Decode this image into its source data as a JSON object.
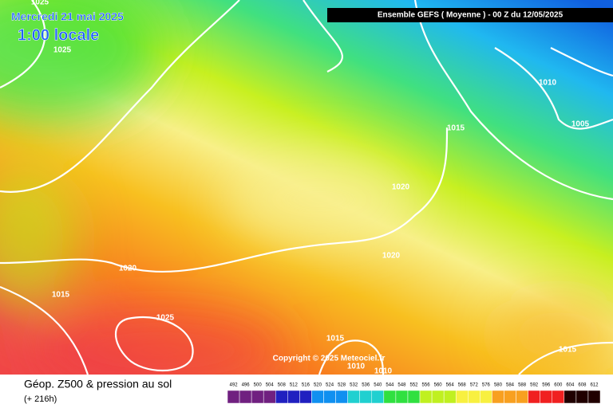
{
  "header": {
    "date": "Mercredi 21 mai 2025",
    "time": "1:00 locale",
    "model": "Ensemble GEFS  ( Moyenne )  -  00 Z du 12/05/2025"
  },
  "isobar_labels": [
    "1025",
    "1025",
    "1010",
    "1005",
    "1015",
    "1020",
    "1020",
    "1020",
    "1015",
    "1025",
    "1015",
    "1010",
    "1010",
    "1015"
  ],
  "copyright": "Copyright © 2025 Meteociel.fr",
  "legend": {
    "title": "Géop. Z500 & pression au sol",
    "lead": "(+ 216h)",
    "scale": [
      492,
      496,
      500,
      504,
      508,
      512,
      516,
      520,
      524,
      528,
      532,
      536,
      540,
      544,
      548,
      552,
      556,
      560,
      564,
      568,
      572,
      576,
      580,
      584,
      588,
      592,
      596,
      600,
      604,
      608,
      612
    ]
  }
}
